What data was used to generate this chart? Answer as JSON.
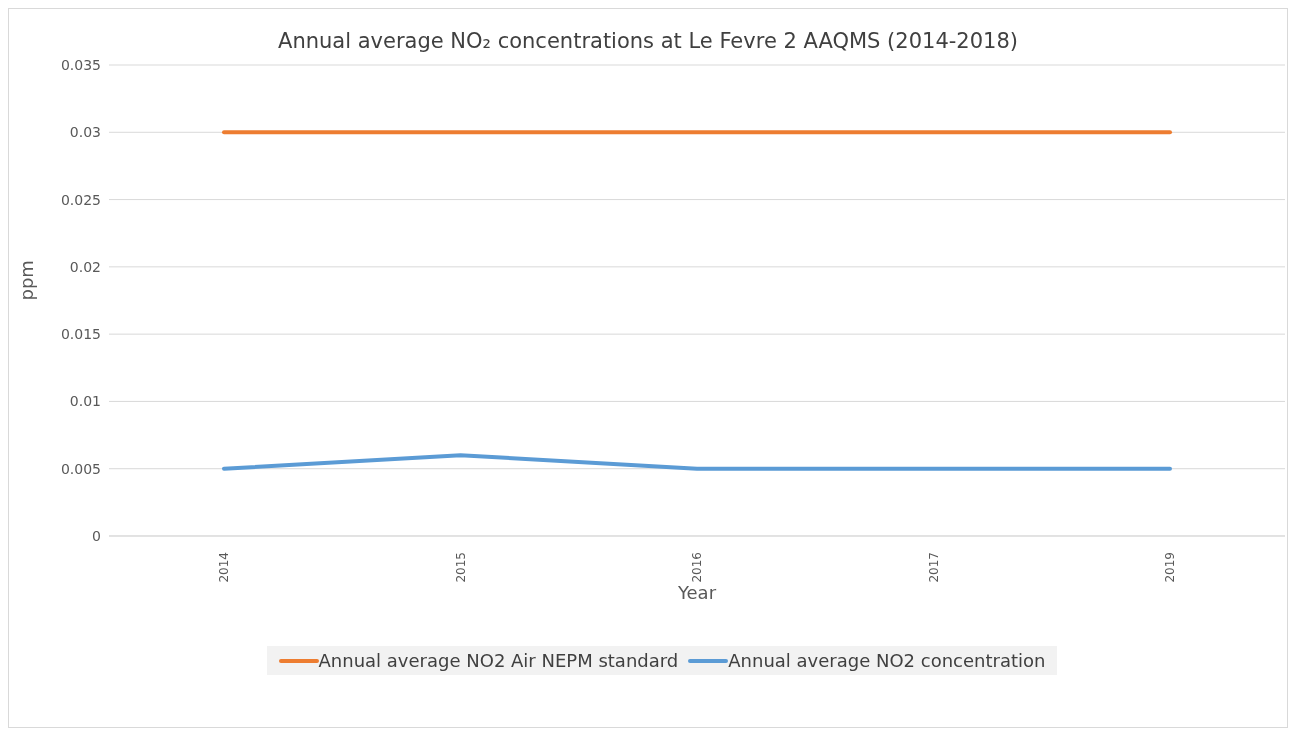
{
  "chart_data": {
    "type": "line",
    "title": "Annual average NO₂ concentrations at Le Fevre 2 AAQMS (2014-2018)",
    "xlabel": "Year",
    "ylabel": "ppm",
    "categories": [
      "2014",
      "2015",
      "2016",
      "2017",
      "2019"
    ],
    "series": [
      {
        "name": "Annual average NO2 Air NEPM standard",
        "color": "#ed7d31",
        "values": [
          0.03,
          0.03,
          0.03,
          0.03,
          0.03
        ]
      },
      {
        "name": "Annual average NO2 concentration",
        "color": "#5b9bd5",
        "values": [
          0.005,
          0.006,
          0.005,
          0.005,
          0.005
        ]
      }
    ],
    "ylim": [
      0,
      0.035
    ],
    "yticks": [
      0,
      0.005,
      0.01,
      0.015,
      0.02,
      0.025,
      0.03,
      0.035
    ],
    "grid": "y",
    "legend": "bottom",
    "marker": "none",
    "line_style": "solid"
  }
}
